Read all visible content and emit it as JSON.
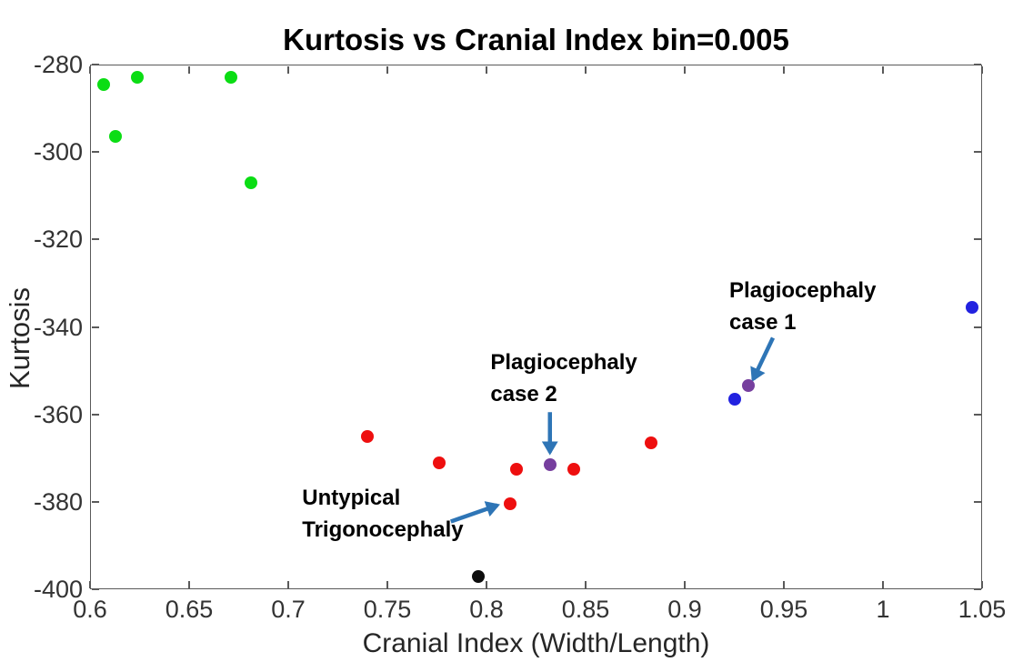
{
  "figure": {
    "title": "Kurtosis vs Cranial Index bin=0.005",
    "xlabel": "Cranial Index (Width/Length)",
    "ylabel": "Kurtosis"
  },
  "chart_data": {
    "type": "scatter",
    "title": "Kurtosis vs Cranial Index bin=0.005",
    "xlabel": "Cranial Index (Width/Length)",
    "ylabel": "Kurtosis",
    "xlim": [
      0.6,
      1.05
    ],
    "ylim": [
      -400,
      -280
    ],
    "xticks": [
      0.6,
      0.65,
      0.7,
      0.75,
      0.8,
      0.85,
      0.9,
      0.95,
      1,
      1.05
    ],
    "xtick_labels": [
      "0.6",
      "0.65",
      "0.7",
      "0.75",
      "0.8",
      "0.85",
      "0.9",
      "0.95",
      "1",
      "1.05"
    ],
    "yticks": [
      -280,
      -300,
      -320,
      -340,
      -360,
      -380,
      -400
    ],
    "ytick_labels": [
      "-280",
      "-300",
      "-320",
      "-340",
      "-360",
      "-380",
      "-400"
    ],
    "grid": false,
    "legend": "none",
    "background": "#ffffff",
    "axis_color": "#5a5a5a",
    "series": [
      {
        "name": "green-group",
        "color": "#0bdd14",
        "points": [
          [
            0.607,
            -284.5
          ],
          [
            0.613,
            -296.5
          ],
          [
            0.624,
            -283
          ],
          [
            0.671,
            -283
          ],
          [
            0.681,
            -307
          ]
        ]
      },
      {
        "name": "red-group",
        "color": "#ee0f0f",
        "points": [
          [
            0.74,
            -365
          ],
          [
            0.776,
            -371
          ],
          [
            0.812,
            -380.5
          ],
          [
            0.815,
            -372.5
          ],
          [
            0.844,
            -372.5
          ],
          [
            0.883,
            -366.5
          ]
        ]
      },
      {
        "name": "black-point",
        "color": "#0d0d0d",
        "points": [
          [
            0.796,
            -397
          ]
        ]
      },
      {
        "name": "blue-group",
        "color": "#2222e0",
        "points": [
          [
            0.925,
            -356.5
          ],
          [
            1.045,
            -335.5
          ]
        ]
      },
      {
        "name": "purple-cases",
        "color": "#763f9e",
        "points": [
          [
            0.832,
            -371.5
          ],
          [
            0.932,
            -353.5
          ]
        ]
      }
    ],
    "annotations": [
      {
        "id": "plagiocephaly-case-1",
        "lines": [
          "Plagiocephaly",
          "case 1"
        ],
        "text_anchor": [
          0.9225,
          -328
        ],
        "arrow_from": [
          0.9445,
          -342.5
        ],
        "arrow_to": [
          0.9345,
          -352
        ],
        "color": "#2e75b6"
      },
      {
        "id": "plagiocephaly-case-2",
        "lines": [
          "Plagiocephaly",
          "case 2"
        ],
        "text_anchor": [
          0.802,
          -344.5
        ],
        "arrow_from": [
          0.832,
          -359.5
        ],
        "arrow_to": [
          0.832,
          -368.7
        ],
        "color": "#2e75b6"
      },
      {
        "id": "untypical-trigonocephaly",
        "lines": [
          "Untypical",
          "Trigonocephaly"
        ],
        "text_anchor": [
          0.707,
          -375.5
        ],
        "arrow_from": [
          0.782,
          -384.5
        ],
        "arrow_to": [
          0.8055,
          -380.8
        ],
        "color": "#2e75b6"
      }
    ]
  }
}
